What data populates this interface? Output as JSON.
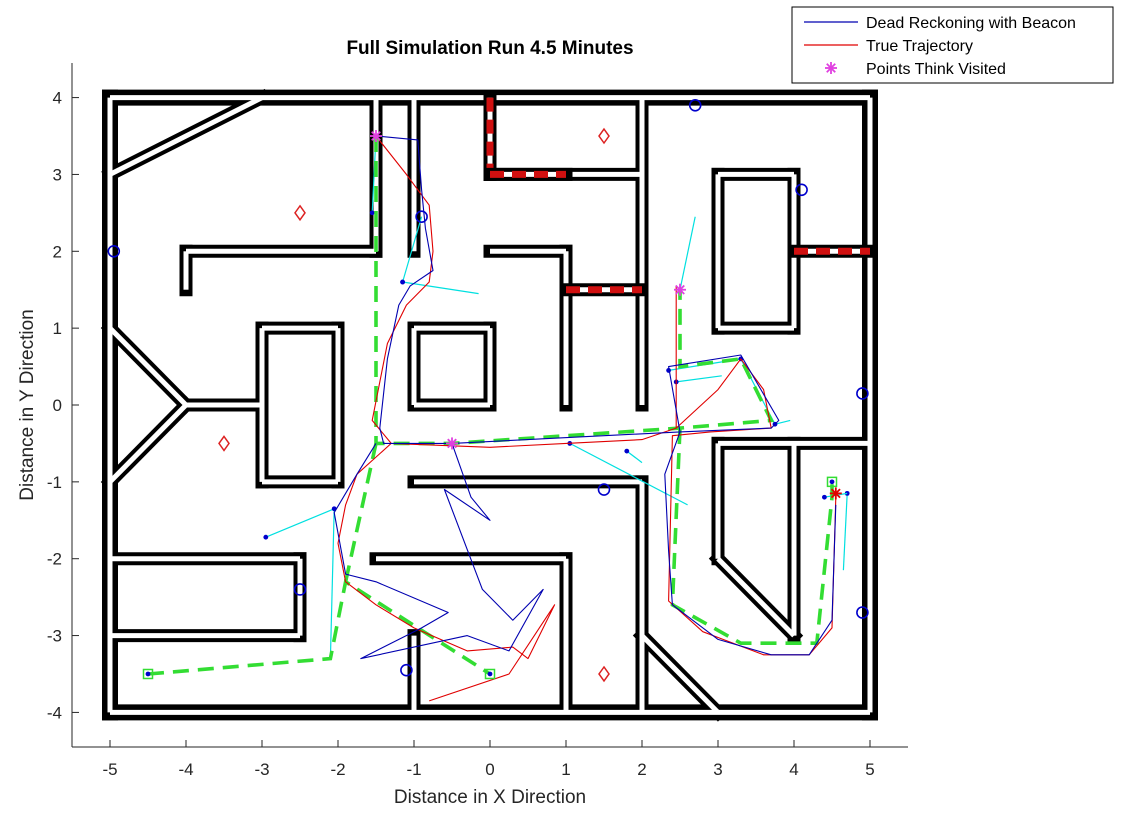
{
  "chart_data": {
    "type": "line",
    "title": "Full Simulation Run 4.5 Minutes",
    "xlabel": "Distance in X Direction",
    "ylabel": "Distance in Y Direction",
    "xlim": [
      -5.5,
      5.5
    ],
    "ylim": [
      -4.45,
      4.45
    ],
    "xticks": [
      -5,
      -4,
      -3,
      -2,
      -1,
      0,
      1,
      2,
      3,
      4,
      5
    ],
    "yticks": [
      -4,
      -3,
      -2,
      -1,
      0,
      1,
      2,
      3,
      4
    ],
    "grid": false,
    "legend_position": "top-right",
    "legend": [
      {
        "label": "Dead Reckoning with Beacon",
        "color": "#0000b0",
        "marker": "line"
      },
      {
        "label": "True Trajectory",
        "color": "#e00000",
        "marker": "line"
      },
      {
        "label": "Points Think Visited",
        "color": "#e040e0",
        "marker": "asterisk"
      }
    ],
    "colors": {
      "walls": "#000000",
      "optional_walls": "#d01010",
      "planned_path": "#33dd33",
      "beacon_lines": "#00e0e0",
      "beacons": "#0000cc",
      "waypoints": "#dd2222",
      "dead_reckoning": "#0000b0",
      "true_trajectory": "#e00000",
      "visited": "#e040e0"
    },
    "walls": [
      [
        [
          -5,
          4
        ],
        [
          5,
          4
        ]
      ],
      [
        [
          5,
          4
        ],
        [
          5,
          -4
        ]
      ],
      [
        [
          5,
          -4
        ],
        [
          -5,
          -4
        ]
      ],
      [
        [
          -5,
          -4
        ],
        [
          -5,
          4
        ]
      ],
      [
        [
          -5,
          3
        ],
        [
          -3,
          4
        ]
      ],
      [
        [
          -1.5,
          4
        ],
        [
          -1.5,
          2
        ]
      ],
      [
        [
          -1.5,
          2
        ],
        [
          -4,
          2
        ]
      ],
      [
        [
          -4,
          2
        ],
        [
          -4,
          1.5
        ]
      ],
      [
        [
          -1,
          4
        ],
        [
          -1,
          2
        ]
      ],
      [
        [
          -3,
          1
        ],
        [
          -2,
          1
        ]
      ],
      [
        [
          -2,
          1
        ],
        [
          -2,
          -1
        ]
      ],
      [
        [
          -2,
          -1
        ],
        [
          -3,
          -1
        ]
      ],
      [
        [
          -3,
          -1
        ],
        [
          -3,
          1
        ]
      ],
      [
        [
          -1,
          1
        ],
        [
          0,
          1
        ]
      ],
      [
        [
          0,
          1
        ],
        [
          0,
          0
        ]
      ],
      [
        [
          0,
          0
        ],
        [
          -1,
          0
        ]
      ],
      [
        [
          -1,
          0
        ],
        [
          -1,
          1
        ]
      ],
      [
        [
          -5,
          1
        ],
        [
          -4,
          0
        ]
      ],
      [
        [
          -4,
          0
        ],
        [
          -5,
          -1
        ]
      ],
      [
        [
          -4,
          0
        ],
        [
          -3,
          0
        ]
      ],
      [
        [
          0,
          3
        ],
        [
          2,
          3
        ]
      ],
      [
        [
          2,
          4
        ],
        [
          2,
          0
        ]
      ],
      [
        [
          0,
          2
        ],
        [
          1,
          2
        ]
      ],
      [
        [
          1,
          2
        ],
        [
          1,
          0
        ]
      ],
      [
        [
          3,
          3
        ],
        [
          4,
          3
        ]
      ],
      [
        [
          4,
          3
        ],
        [
          4,
          1
        ]
      ],
      [
        [
          4,
          1
        ],
        [
          3,
          1
        ]
      ],
      [
        [
          3,
          1
        ],
        [
          3,
          3
        ]
      ],
      [
        [
          3,
          -0.5
        ],
        [
          5,
          -0.5
        ]
      ],
      [
        [
          3,
          -0.5
        ],
        [
          3,
          -2
        ]
      ],
      [
        [
          3,
          -2
        ],
        [
          4,
          -3
        ]
      ],
      [
        [
          4,
          -3
        ],
        [
          4,
          -0.5
        ]
      ],
      [
        [
          -1,
          -1
        ],
        [
          2,
          -1
        ]
      ],
      [
        [
          2,
          -1
        ],
        [
          2,
          -4
        ]
      ],
      [
        [
          -5,
          -2
        ],
        [
          -2.5,
          -2
        ]
      ],
      [
        [
          -2.5,
          -2
        ],
        [
          -2.5,
          -3
        ]
      ],
      [
        [
          -2.5,
          -3
        ],
        [
          -5,
          -3
        ]
      ],
      [
        [
          -1.5,
          -2
        ],
        [
          1,
          -2
        ]
      ],
      [
        [
          1,
          -2
        ],
        [
          1,
          -4
        ]
      ],
      [
        [
          -1,
          -3
        ],
        [
          -1,
          -4
        ]
      ],
      [
        [
          2,
          -3
        ],
        [
          3,
          -4
        ]
      ]
    ],
    "optional_walls": [
      [
        [
          0,
          4
        ],
        [
          0,
          3
        ]
      ],
      [
        [
          0,
          3
        ],
        [
          1,
          3
        ]
      ],
      [
        [
          1,
          1.5
        ],
        [
          2,
          1.5
        ]
      ],
      [
        [
          4,
          2
        ],
        [
          5,
          2
        ]
      ]
    ],
    "beacons": [
      [
        -4.95,
        2
      ],
      [
        2.7,
        3.9
      ],
      [
        4.1,
        2.8
      ],
      [
        -0.9,
        2.45
      ],
      [
        4.9,
        0.15
      ],
      [
        1.5,
        -1.1
      ],
      [
        4.9,
        -2.7
      ],
      [
        -2.5,
        -2.4
      ],
      [
        -1.1,
        -3.45
      ]
    ],
    "waypoints": [
      [
        -2.5,
        2.5
      ],
      [
        1.5,
        3.5
      ],
      [
        -3.5,
        -0.5
      ],
      [
        1.5,
        -3.5
      ]
    ],
    "visited_points": [
      [
        -1.5,
        3.5
      ],
      [
        -0.5,
        -0.5
      ],
      [
        2.5,
        1.5
      ]
    ],
    "start_points": [
      [
        -4.5,
        -3.5
      ],
      [
        0,
        -3.5
      ],
      [
        4.5,
        -1
      ]
    ],
    "end_point": [
      4.55,
      -1.15
    ],
    "planned_path": [
      [
        [
          -1.5,
          3.5
        ],
        [
          -1.5,
          -0.5
        ],
        [
          -0.5,
          -0.5
        ],
        [
          2.5,
          -0.3
        ],
        [
          3.7,
          -0.2
        ],
        [
          3.3,
          0.6
        ],
        [
          2.5,
          0.5
        ],
        [
          2.5,
          1.5
        ]
      ],
      [
        [
          -4.5,
          -3.5
        ],
        [
          -2.1,
          -3.3
        ],
        [
          -1.9,
          -2.3
        ],
        [
          0,
          -3.5
        ]
      ],
      [
        [
          -1.5,
          -0.5
        ],
        [
          -1.9,
          -2.3
        ]
      ],
      [
        [
          2.5,
          -0.3
        ],
        [
          2.4,
          -2.6
        ],
        [
          3.3,
          -3.1
        ],
        [
          4,
          -3.1
        ],
        [
          4.3,
          -3.1
        ],
        [
          4.5,
          -1.2
        ],
        [
          4.5,
          -1
        ]
      ]
    ],
    "beacon_lines": [
      [
        [
          -1.55,
          2.5
        ],
        [
          -1.5,
          3.5
        ]
      ],
      [
        [
          -1.15,
          1.6
        ],
        [
          -0.15,
          1.45
        ]
      ],
      [
        [
          -1.15,
          1.6
        ],
        [
          -0.9,
          2.45
        ]
      ],
      [
        [
          -2.95,
          -1.72
        ],
        [
          -2.05,
          -1.35
        ]
      ],
      [
        [
          -2.05,
          -1.35
        ],
        [
          -2.1,
          -3.3
        ]
      ],
      [
        [
          2.5,
          1.5
        ],
        [
          2.7,
          2.45
        ]
      ],
      [
        [
          2.35,
          0.45
        ],
        [
          3.3,
          0.6
        ]
      ],
      [
        [
          3.3,
          0.6
        ],
        [
          3.75,
          -0.25
        ]
      ],
      [
        [
          3.75,
          -0.25
        ],
        [
          3.95,
          -0.2
        ]
      ],
      [
        [
          2.45,
          0.3
        ],
        [
          3.05,
          0.38
        ]
      ],
      [
        [
          1.05,
          -0.5
        ],
        [
          2.6,
          -1.3
        ]
      ],
      [
        [
          1.8,
          -0.6
        ],
        [
          2,
          -0.75
        ]
      ],
      [
        [
          4.7,
          -1.15
        ],
        [
          4.65,
          -2.15
        ]
      ],
      [
        [
          4.4,
          -1.2
        ],
        [
          4.7,
          -1.15
        ]
      ]
    ],
    "dead_reckoning": [
      [
        [
          -1.5,
          3.5
        ],
        [
          -0.95,
          3.45
        ],
        [
          -0.9,
          2.8
        ],
        [
          -0.85,
          2.3
        ],
        [
          -0.75,
          1.75
        ],
        [
          -1.05,
          1.55
        ],
        [
          -1.2,
          1.3
        ],
        [
          -1.35,
          0.6
        ],
        [
          -1.45,
          -0.3
        ],
        [
          -1.4,
          -0.5
        ],
        [
          -0.5,
          -0.5
        ],
        [
          1.5,
          -0.4
        ],
        [
          2.5,
          -0.35
        ],
        [
          2.35,
          0.5
        ],
        [
          3.3,
          0.65
        ],
        [
          3.8,
          -0.2
        ],
        [
          3.7,
          -0.3
        ],
        [
          2.5,
          -0.35
        ]
      ],
      [
        [
          -0.5,
          -0.5
        ],
        [
          -0.25,
          -1.2
        ],
        [
          0,
          -1.5
        ],
        [
          -0.6,
          -1.1
        ],
        [
          -0.1,
          -2.4
        ],
        [
          0.3,
          -2.8
        ],
        [
          0.7,
          -2.4
        ],
        [
          0.25,
          -3.2
        ],
        [
          -0.3,
          -3
        ],
        [
          -1.7,
          -3.3
        ],
        [
          -0.9,
          -2.9
        ],
        [
          -0.55,
          -2.7
        ],
        [
          -1.5,
          -2.3
        ],
        [
          -1.9,
          -2.2
        ],
        [
          -2.05,
          -1.4
        ],
        [
          -1.75,
          -0.9
        ],
        [
          -1.5,
          -0.5
        ]
      ],
      [
        [
          2.5,
          -0.35
        ],
        [
          2.3,
          -0.9
        ],
        [
          2.35,
          -1.9
        ],
        [
          2.4,
          -2.6
        ],
        [
          3,
          -3.05
        ],
        [
          3.7,
          -3.25
        ],
        [
          4.2,
          -3.25
        ],
        [
          4.5,
          -2.8
        ],
        [
          4.55,
          -1.3
        ]
      ]
    ],
    "true_trajectory": [
      [
        [
          -1.5,
          3.5
        ],
        [
          -1.1,
          3
        ],
        [
          -0.8,
          2.6
        ],
        [
          -0.75,
          2
        ],
        [
          -0.8,
          1.6
        ],
        [
          -1.1,
          1.3
        ],
        [
          -1.35,
          0.8
        ],
        [
          -1.55,
          -0.2
        ],
        [
          -1.3,
          -0.5
        ],
        [
          0,
          -0.55
        ],
        [
          1,
          -0.5
        ],
        [
          2,
          -0.45
        ],
        [
          2.45,
          -0.3
        ],
        [
          2.45,
          1.55
        ]
      ],
      [
        [
          2.45,
          -0.3
        ],
        [
          3,
          0.2
        ],
        [
          3.3,
          0.6
        ],
        [
          3.6,
          0.2
        ],
        [
          3.7,
          -0.3
        ],
        [
          2.9,
          -0.35
        ],
        [
          2.4,
          -0.4
        ],
        [
          2.35,
          -2.55
        ],
        [
          2.8,
          -2.95
        ],
        [
          3.6,
          -3.25
        ],
        [
          4.2,
          -3.25
        ],
        [
          4.5,
          -2.9
        ],
        [
          4.55,
          -1.2
        ]
      ],
      [
        [
          -1.3,
          -0.5
        ],
        [
          -1.75,
          -0.9
        ],
        [
          -1.9,
          -1.3
        ],
        [
          -2,
          -1.8
        ],
        [
          -1.9,
          -2.3
        ],
        [
          -1.5,
          -2.6
        ],
        [
          -1,
          -2.9
        ],
        [
          -0.3,
          -3.2
        ],
        [
          0.3,
          -3.15
        ],
        [
          0.5,
          -3.3
        ],
        [
          0.8,
          -2.7
        ],
        [
          0.85,
          -2.6
        ],
        [
          0.25,
          -3.5
        ],
        [
          -0.8,
          -3.85
        ]
      ]
    ]
  }
}
